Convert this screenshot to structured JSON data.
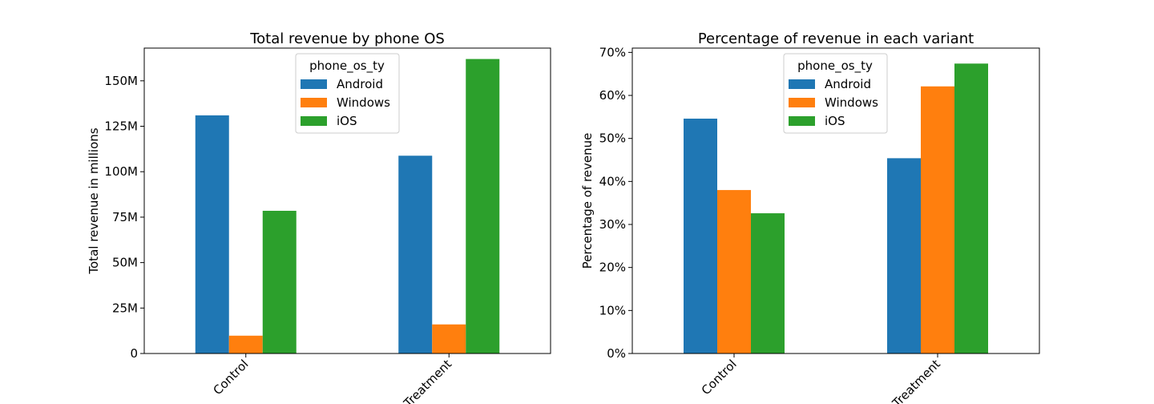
{
  "chart_data": [
    {
      "type": "bar",
      "title": "Total revenue by phone OS",
      "xlabel": "",
      "ylabel": "Total revenue in millions",
      "categories": [
        "Control",
        "Treatment"
      ],
      "legend_title": "phone_os_ty",
      "legend_position": "top-center",
      "ylim": [
        0,
        168
      ],
      "yticks": [
        0,
        25,
        50,
        75,
        100,
        125,
        150
      ],
      "ytick_labels": [
        "0",
        "25M",
        "50M",
        "75M",
        "100M",
        "125M",
        "150M"
      ],
      "series": [
        {
          "name": "Android",
          "values": [
            131,
            108.8
          ],
          "color": "#1f77b4"
        },
        {
          "name": "Windows",
          "values": [
            9.8,
            16
          ],
          "color": "#ff7f0e"
        },
        {
          "name": "iOS",
          "values": [
            78.5,
            162
          ],
          "color": "#2ca02c"
        }
      ]
    },
    {
      "type": "bar",
      "title": "Percentage of revenue  in each variant",
      "xlabel": "",
      "ylabel": "Percentage of revenue",
      "categories": [
        "Control",
        "Treatment"
      ],
      "legend_title": "phone_os_ty",
      "legend_position": "top-center",
      "ylim": [
        0,
        71
      ],
      "yticks": [
        0,
        10,
        20,
        30,
        40,
        50,
        60,
        70
      ],
      "ytick_labels": [
        "0%",
        "10%",
        "20%",
        "30%",
        "40%",
        "50%",
        "60%",
        "70%"
      ],
      "series": [
        {
          "name": "Android",
          "values": [
            54.6,
            45.4
          ],
          "color": "#1f77b4"
        },
        {
          "name": "Windows",
          "values": [
            38,
            62.1
          ],
          "color": "#ff7f0e"
        },
        {
          "name": "iOS",
          "values": [
            32.6,
            67.4
          ],
          "color": "#2ca02c"
        }
      ]
    }
  ]
}
